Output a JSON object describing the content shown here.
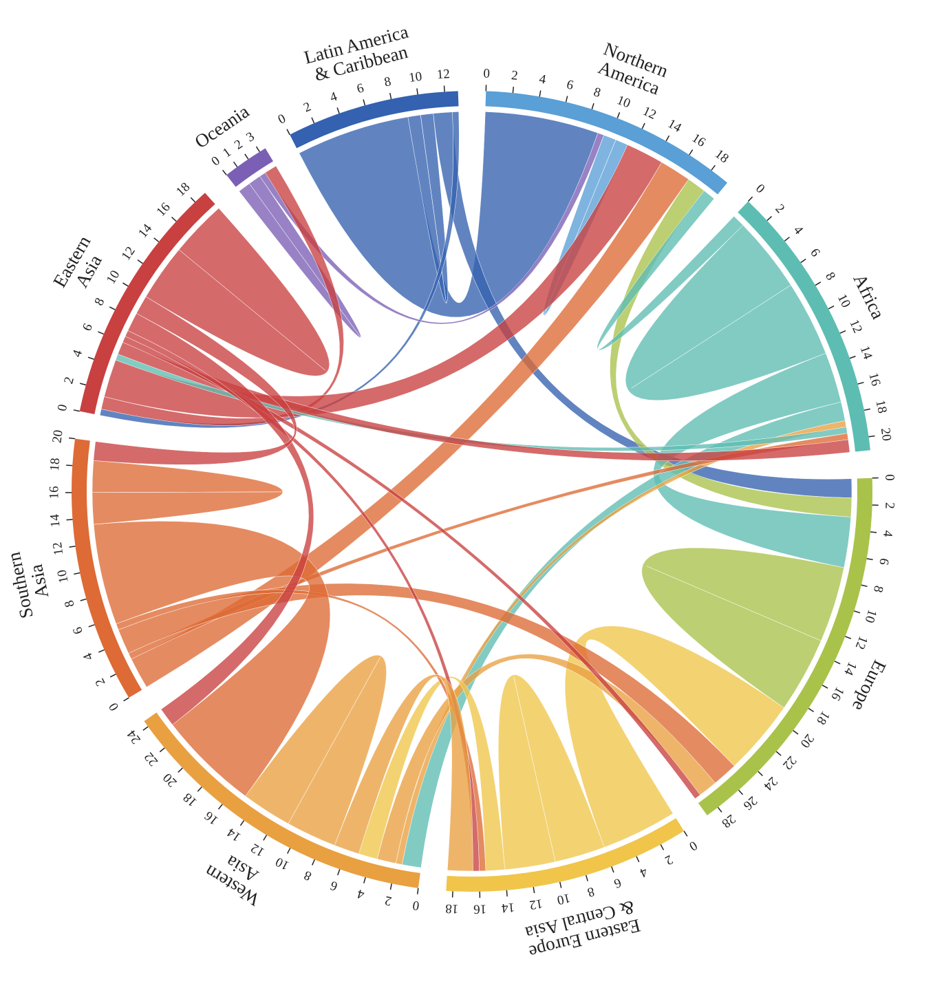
{
  "chart_data": {
    "type": "chord",
    "regions": [
      {
        "name_lines": [
          "Northern",
          "America"
        ],
        "color": "#5a9fd6",
        "total": 19.5,
        "ticks": [
          0,
          2,
          4,
          6,
          8,
          10,
          12,
          14,
          16,
          18
        ]
      },
      {
        "name_lines": [
          "Africa"
        ],
        "color": "#5dbdb2",
        "total": 21,
        "ticks": [
          0,
          2,
          4,
          6,
          8,
          10,
          12,
          14,
          16,
          18,
          20
        ]
      },
      {
        "name_lines": [
          "Europe"
        ],
        "color": "#a9c24a",
        "total": 29,
        "ticks": [
          0,
          2,
          4,
          6,
          8,
          10,
          12,
          14,
          16,
          18,
          20,
          22,
          24,
          26,
          28
        ]
      },
      {
        "name_lines": [
          "Eastern Europe",
          "& Central Asia"
        ],
        "color": "#f0c54a",
        "total": 18.5,
        "ticks": [
          0,
          2,
          4,
          6,
          8,
          10,
          12,
          14,
          16,
          18
        ]
      },
      {
        "name_lines": [
          "Western",
          "Asia"
        ],
        "color": "#e9a040",
        "total": 24.5,
        "ticks": [
          0,
          2,
          4,
          6,
          8,
          10,
          12,
          14,
          16,
          18,
          20,
          22,
          24
        ]
      },
      {
        "name_lines": [
          "Southern",
          "Asia"
        ],
        "color": "#de6a35",
        "total": 20,
        "ticks": [
          0,
          2,
          4,
          6,
          8,
          10,
          12,
          14,
          16,
          18,
          20
        ]
      },
      {
        "name_lines": [
          "Eastern",
          "Asia"
        ],
        "color": "#c94040",
        "total": 19,
        "ticks": [
          0,
          2,
          4,
          6,
          8,
          10,
          12,
          14,
          16,
          18
        ]
      },
      {
        "name_lines": [
          "Oceania"
        ],
        "color": "#7b5fb5",
        "total": 3.5,
        "ticks": [
          0,
          1,
          2,
          3
        ]
      },
      {
        "name_lines": [
          "Latin America",
          "& Caribbean"
        ],
        "color": "#3461b0",
        "total": 13,
        "ticks": [
          0,
          2,
          4,
          6,
          8,
          10,
          12
        ]
      }
    ],
    "flows": [
      {
        "from": 8,
        "to": 0,
        "value": 9
      },
      {
        "from": 8,
        "to": 8,
        "value": 1
      },
      {
        "from": 8,
        "to": 2,
        "value": 1.5
      },
      {
        "from": 8,
        "to": 6,
        "value": 0.5
      },
      {
        "from": 7,
        "to": 7,
        "value": 1
      },
      {
        "from": 7,
        "to": 0,
        "value": 0.5
      },
      {
        "from": 6,
        "to": 7,
        "value": 1
      },
      {
        "from": 0,
        "to": 0,
        "value": 1
      },
      {
        "from": 6,
        "to": 0,
        "value": 3
      },
      {
        "from": 5,
        "to": 0,
        "value": 2.5
      },
      {
        "from": 2,
        "to": 0,
        "value": 1.5
      },
      {
        "from": 1,
        "to": 0,
        "value": 1
      },
      {
        "from": 1,
        "to": 1,
        "value": 6
      },
      {
        "from": 1,
        "to": 2,
        "value": 4
      },
      {
        "from": 1,
        "to": 4,
        "value": 1.5
      },
      {
        "from": 4,
        "to": 1,
        "value": 0.5
      },
      {
        "from": 1,
        "to": 6,
        "value": 0.5
      },
      {
        "from": 5,
        "to": 1,
        "value": 0.5
      },
      {
        "from": 6,
        "to": 1,
        "value": 1
      },
      {
        "from": 2,
        "to": 2,
        "value": 6
      },
      {
        "from": 3,
        "to": 2,
        "value": 6
      },
      {
        "from": 5,
        "to": 2,
        "value": 2
      },
      {
        "from": 4,
        "to": 2,
        "value": 1.5
      },
      {
        "from": 6,
        "to": 2,
        "value": 0.5
      },
      {
        "from": 3,
        "to": 3,
        "value": 4
      },
      {
        "from": 3,
        "to": 4,
        "value": 1.5
      },
      {
        "from": 5,
        "to": 3,
        "value": 0.5
      },
      {
        "from": 6,
        "to": 3,
        "value": 0.5
      },
      {
        "from": 4,
        "to": 3,
        "value": 2
      },
      {
        "from": 4,
        "to": 4,
        "value": 4
      },
      {
        "from": 5,
        "to": 4,
        "value": 8
      },
      {
        "from": 6,
        "to": 4,
        "value": 1.5
      },
      {
        "from": 5,
        "to": 5,
        "value": 2.5
      },
      {
        "from": 6,
        "to": 5,
        "value": 1.5
      },
      {
        "from": 6,
        "to": 6,
        "value": 4.5
      }
    ]
  }
}
